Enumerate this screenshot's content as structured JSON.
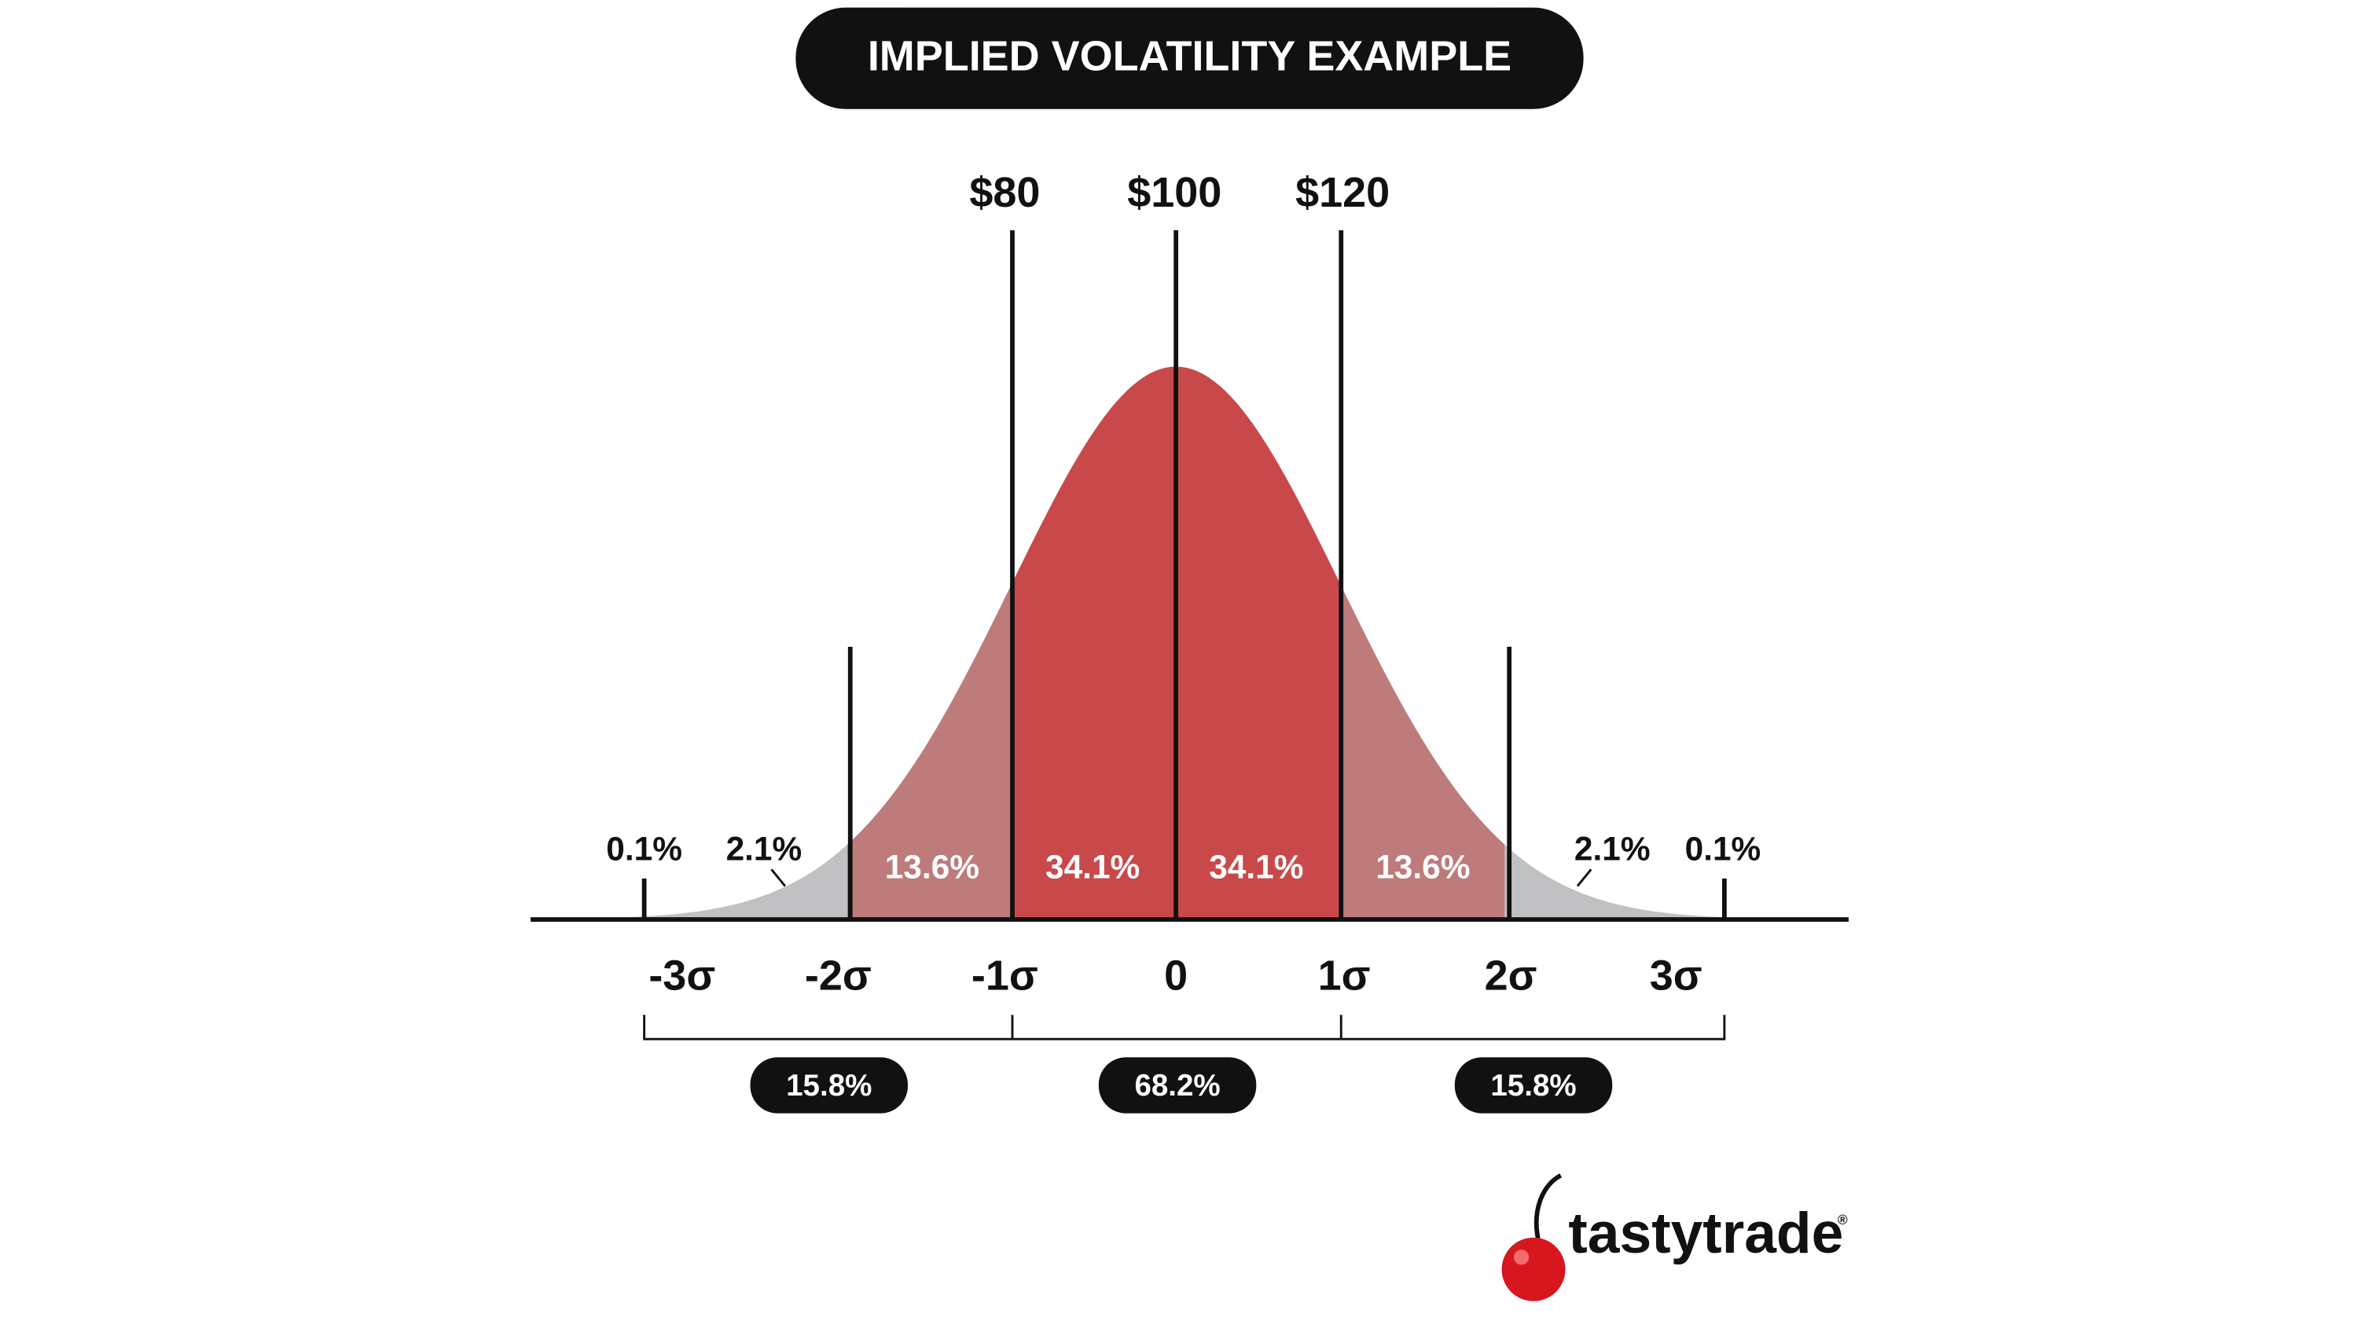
{
  "title": "IMPLIED VOLATILITY EXAMPLE",
  "price_labels": [
    "$80",
    "$100",
    "$120"
  ],
  "segment_labels": [
    "0.1%",
    "2.1%",
    "13.6%",
    "34.1%",
    "34.1%",
    "13.6%",
    "2.1%",
    "0.1%"
  ],
  "sigma_labels": [
    "-3σ",
    "-2σ",
    "-1σ",
    "0",
    "1σ",
    "2σ",
    "3σ"
  ],
  "range_labels": [
    "15.8%",
    "68.2%",
    "15.8%"
  ],
  "logo": {
    "name": "tastytrade",
    "mark": "®"
  }
}
